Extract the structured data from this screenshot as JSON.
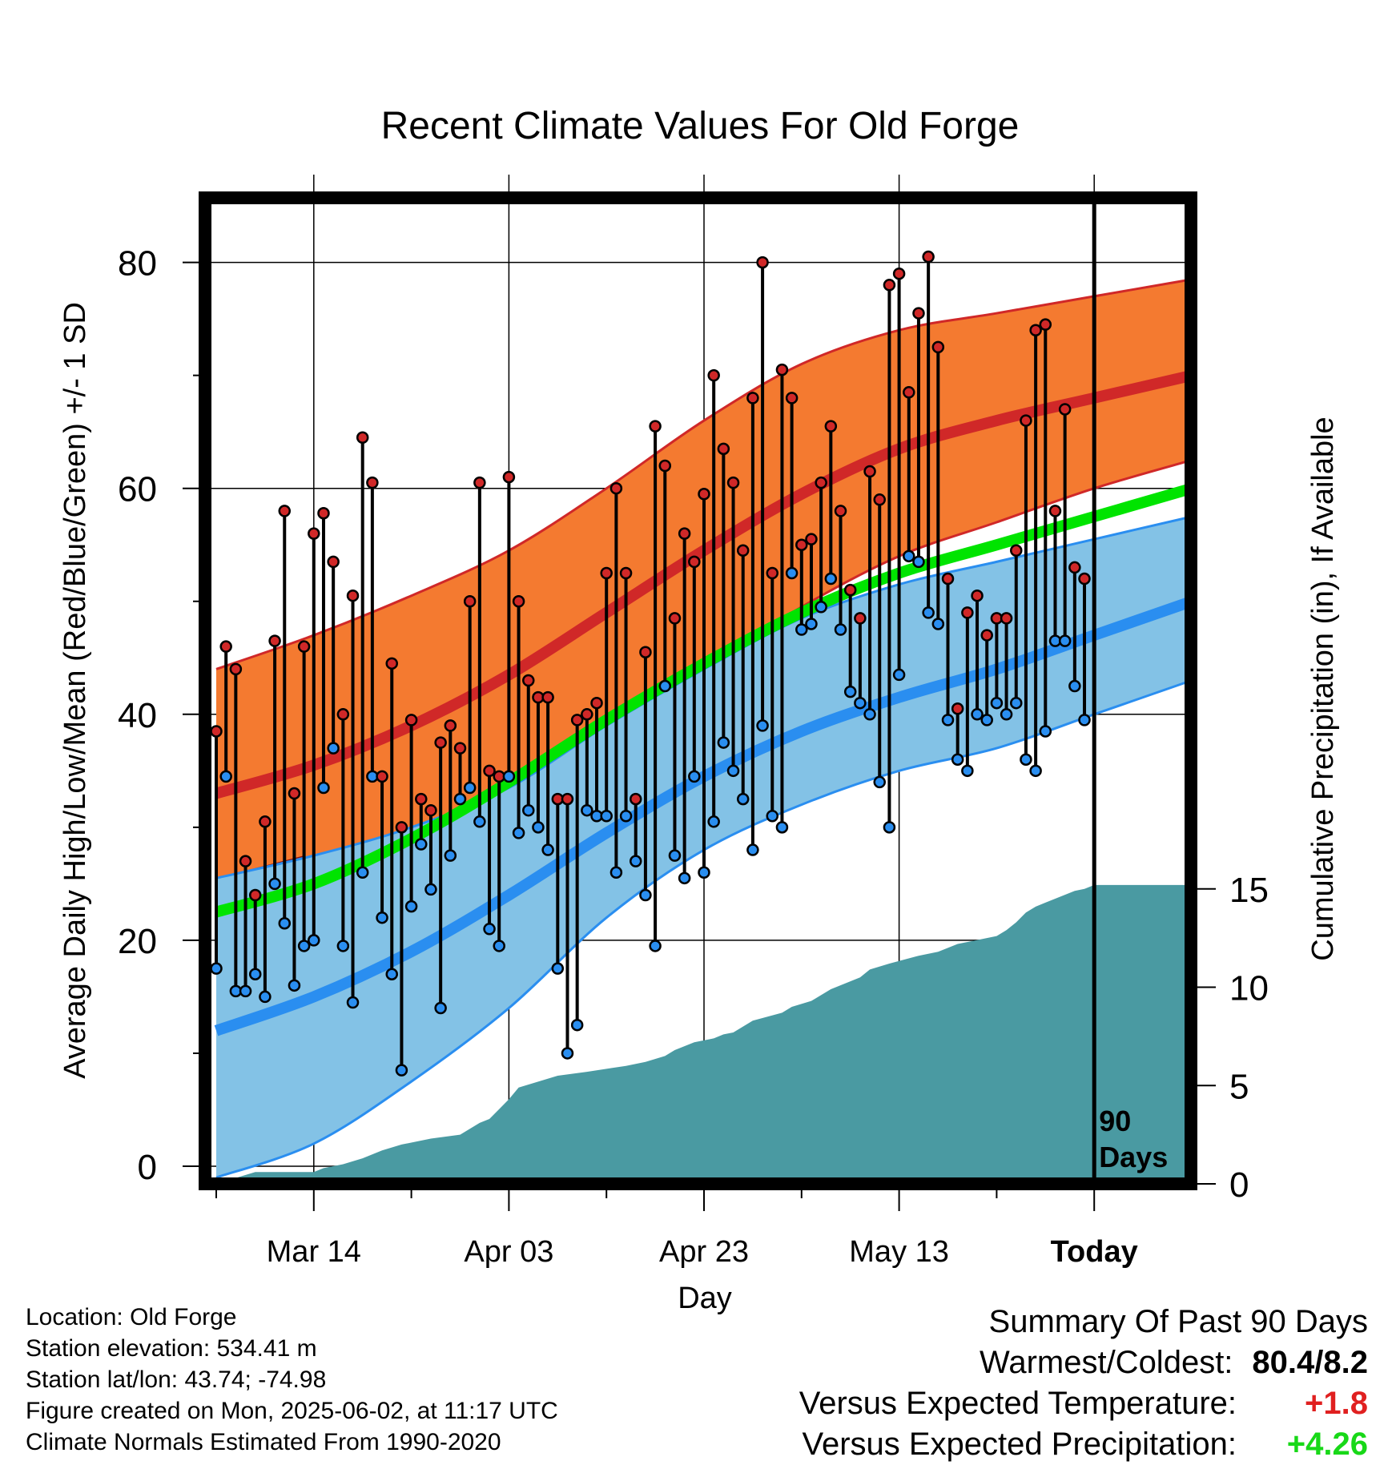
{
  "title": "Recent Climate Values For Old Forge",
  "chart_data": {
    "type": "line",
    "title": "Recent Climate Values For Old Forge",
    "xlabel": "Day",
    "ylabel": "Average Daily High/Low/Mean (Red/Blue/Green) +/- 1 SD",
    "y2label": "Cumulative Precipitation (in), If Available",
    "ylim": [
      -1,
      86
    ],
    "y2lim": [
      0,
      27.5
    ],
    "yticks": [
      "0",
      "20",
      "40",
      "60",
      "80"
    ],
    "y2ticks": [
      "0",
      "5",
      "10",
      "15"
    ],
    "xticks": [
      "Mar 14",
      "Apr 03",
      "Apr 23",
      "May 13",
      "Today"
    ],
    "x_tick_days": [
      10,
      30,
      50,
      70,
      90
    ],
    "x_range_days": [
      0,
      100
    ],
    "grid": true,
    "today_marker": "90\nDays",
    "normals": {
      "days": [
        0,
        10,
        20,
        30,
        40,
        50,
        60,
        70,
        80,
        90,
        100
      ],
      "high_mean": [
        33,
        35.5,
        39,
        43.5,
        49,
        54.5,
        59.5,
        63.5,
        66,
        68,
        70
      ],
      "high_plus_sd": [
        44,
        47,
        50.5,
        54.5,
        60,
        66,
        71,
        74,
        75.5,
        77,
        78.5
      ],
      "high_minus_sd": [
        25.5,
        27,
        29.5,
        33,
        38.5,
        44,
        49.5,
        54,
        57,
        60,
        62.5
      ],
      "low_mean": [
        12,
        15,
        19,
        24,
        29.5,
        34.5,
        38.5,
        41.5,
        44,
        47,
        50
      ],
      "low_plus_sd": [
        25.5,
        27.5,
        30,
        33.5,
        39,
        44,
        48.5,
        51.5,
        53.5,
        55.5,
        57.5
      ],
      "low_minus_sd": [
        -1,
        2,
        7.5,
        14,
        22,
        28,
        32,
        35,
        37,
        40,
        43
      ],
      "mean": [
        22.5,
        25,
        29,
        34,
        39.5,
        44.5,
        49,
        52.5,
        55,
        57.5,
        60
      ]
    },
    "daily": {
      "days": [
        0,
        1,
        2,
        3,
        4,
        5,
        6,
        7,
        8,
        9,
        10,
        11,
        12,
        13,
        14,
        15,
        16,
        17,
        18,
        19,
        20,
        21,
        22,
        23,
        24,
        25,
        26,
        27,
        28,
        29,
        30,
        31,
        32,
        33,
        34,
        35,
        36,
        37,
        38,
        39,
        40,
        41,
        42,
        43,
        44,
        45,
        46,
        47,
        48,
        49,
        50,
        51,
        52,
        53,
        54,
        55,
        56,
        57,
        58,
        59,
        60,
        61,
        62,
        63,
        64,
        65,
        66,
        67,
        68,
        69,
        70,
        71,
        72,
        73,
        74,
        75,
        76,
        77,
        78,
        79,
        80,
        81,
        82,
        83,
        84,
        85,
        86,
        87,
        88,
        89
      ],
      "high": [
        38.5,
        46,
        44,
        27,
        24,
        30.5,
        46.5,
        58,
        33,
        46,
        56,
        57.8,
        53.5,
        40,
        50.5,
        64.5,
        60.5,
        34.5,
        44.5,
        30,
        39.5,
        32.5,
        31.5,
        37.5,
        39,
        37,
        50,
        60.5,
        35,
        34.5,
        61,
        50,
        43,
        41.5,
        41.5,
        32.5,
        32.5,
        39.5,
        40,
        41,
        52.5,
        60,
        52.5,
        32.5,
        45.5,
        65.5,
        62,
        48.5,
        56,
        53.5,
        59.5,
        70,
        63.5,
        60.5,
        54.5,
        68,
        80,
        52.5,
        70.5,
        68,
        55,
        55.5,
        60.5,
        65.5,
        58,
        51,
        48.5,
        61.5,
        59,
        78,
        79,
        68.5,
        75.5,
        80.5,
        72.5,
        52,
        40.5,
        49,
        50.5,
        47,
        48.5,
        48.5,
        54.5,
        66,
        74,
        74.5,
        58,
        67,
        53,
        52
      ],
      "low": [
        17.5,
        34.5,
        15.5,
        15.5,
        17,
        15,
        25,
        21.5,
        16,
        19.5,
        20,
        33.5,
        37,
        19.5,
        14.5,
        26,
        34.5,
        22,
        17,
        8.5,
        23,
        28.5,
        24.5,
        14,
        27.5,
        32.5,
        33.5,
        30.5,
        21,
        19.5,
        34.5,
        29.5,
        31.5,
        30,
        28,
        17.5,
        10,
        12.5,
        31.5,
        31,
        31,
        26,
        31,
        27,
        24,
        19.5,
        42.5,
        27.5,
        25.5,
        34.5,
        26,
        30.5,
        37.5,
        35,
        32.5,
        28,
        39,
        31,
        30,
        52.5,
        47.5,
        48,
        49.5,
        52,
        47.5,
        42,
        41,
        40,
        34,
        30,
        43.5,
        54,
        53.5,
        49,
        48,
        39.5,
        36,
        35,
        40,
        39.5,
        41,
        40,
        41,
        36,
        35,
        38.5,
        46.5,
        46.5,
        42.5,
        39.5
      ]
    },
    "precip_cumulative": {
      "days": [
        0,
        2,
        4,
        10,
        11,
        13,
        15,
        17,
        19,
        22,
        25,
        27,
        28,
        29,
        30,
        31,
        33,
        35,
        38,
        42,
        44,
        46,
        47,
        48,
        49,
        51,
        52,
        53,
        54,
        55,
        58,
        59,
        61,
        63,
        66,
        67,
        69,
        72,
        74,
        75,
        76,
        78,
        80,
        81,
        82,
        83,
        84,
        85,
        86,
        87,
        88,
        89,
        90,
        100
      ],
      "values": [
        0,
        0.3,
        0.6,
        0.6,
        0.8,
        1.0,
        1.3,
        1.7,
        2.0,
        2.3,
        2.5,
        3.1,
        3.3,
        3.8,
        4.3,
        4.9,
        5.2,
        5.5,
        5.7,
        6.0,
        6.2,
        6.5,
        6.8,
        7.0,
        7.2,
        7.4,
        7.6,
        7.7,
        8.0,
        8.3,
        8.7,
        9.0,
        9.3,
        9.9,
        10.5,
        10.9,
        11.2,
        11.6,
        11.8,
        12.0,
        12.2,
        12.4,
        12.6,
        12.9,
        13.3,
        13.8,
        14.1,
        14.3,
        14.5,
        14.7,
        14.9,
        15.0,
        15.2,
        15.2
      ]
    },
    "colors": {
      "high_band": "#F47A30",
      "high_line": "#D02828",
      "high_early": "#8E1010",
      "low_band": "#83C2E6",
      "low_line": "#2A8EF0",
      "mean_line": "#00E400",
      "precip_fill": "#4A9AA2",
      "high_dot": "#D02828",
      "low_dot": "#2A8EF0"
    }
  },
  "footer": {
    "location": "Location: Old Forge",
    "elevation": "Station elevation: 534.41 m",
    "latlon": "Station lat/lon: 43.74; -74.98",
    "created": "Figure created on Mon, 2025-06-02, at 11:17 UTC",
    "normals": "Climate Normals Estimated From 1990-2020"
  },
  "summary": {
    "heading": "Summary Of Past 90 Days",
    "warm_cold_label": "Warmest/Coldest:",
    "warm_cold_value": "80.4/8.2",
    "temp_label": "Versus Expected Temperature:",
    "temp_value": "+1.8",
    "temp_color": "#E02020",
    "precip_label": "Versus Expected Precipitation:",
    "precip_value": "+4.26",
    "precip_color": "#18D818"
  }
}
